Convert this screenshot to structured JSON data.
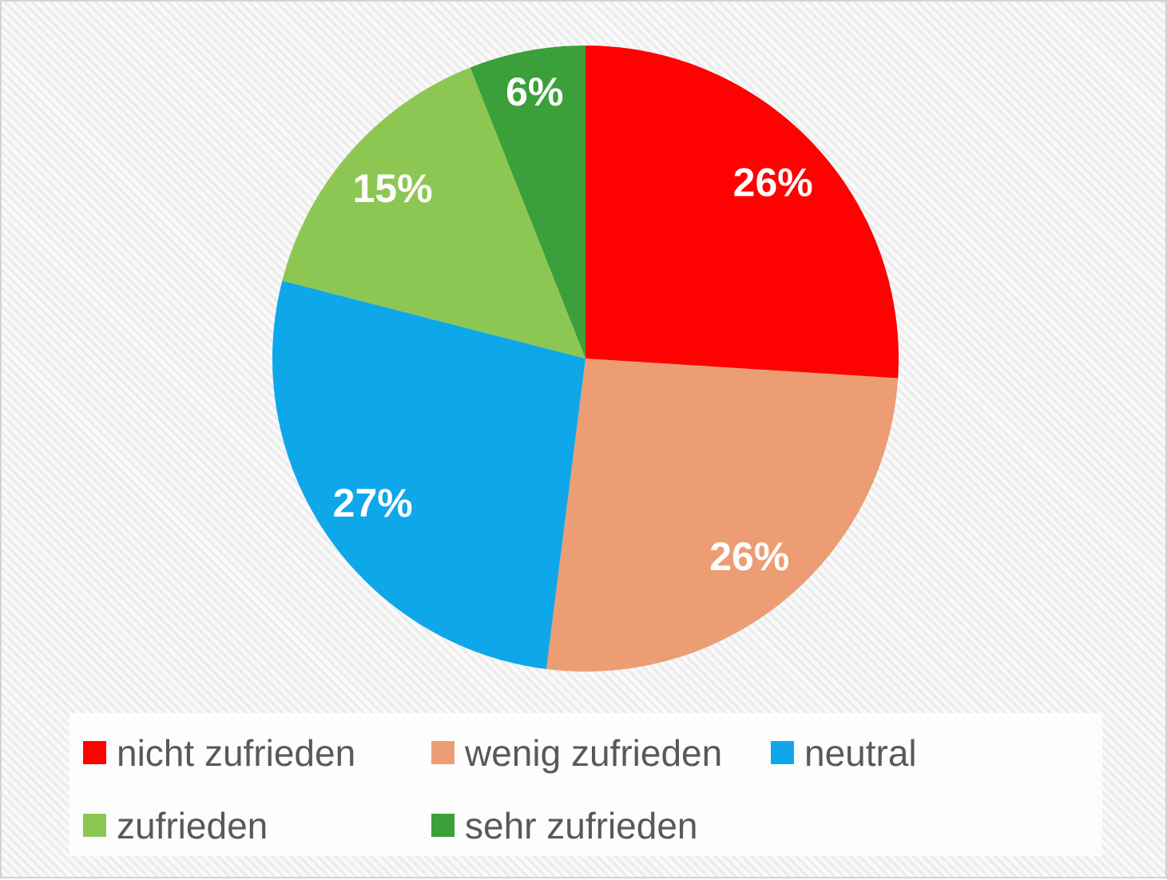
{
  "chart_data": {
    "type": "pie",
    "title": "",
    "categories": [
      "nicht zufrieden",
      "wenig zufrieden",
      "neutral",
      "zufrieden",
      "sehr zufrieden"
    ],
    "values": [
      26,
      26,
      27,
      15,
      6
    ],
    "data_labels": [
      "26%",
      "26%",
      "27%",
      "15%",
      "6%"
    ],
    "slice_colors": [
      "#FE0101",
      "#EC9D74",
      "#0EA7EA",
      "#8DC753",
      "#3BA039"
    ],
    "start_angle_deg": 0,
    "direction": "clockwise",
    "data_label_color": "#FFFFFF",
    "legend_position": "bottom",
    "legend_text_color": "#595959"
  },
  "legend": {
    "items": [
      {
        "label": "nicht zufrieden",
        "color": "#FE0101"
      },
      {
        "label": "wenig zufrieden",
        "color": "#EC9D74"
      },
      {
        "label": "neutral",
        "color": "#0EA7EA"
      },
      {
        "label": "zufrieden",
        "color": "#8DC753"
      },
      {
        "label": "sehr zufrieden",
        "color": "#3BA039"
      }
    ]
  },
  "colors": {
    "background_stripe": "#ECECEC",
    "background_base": "#FAFAFA",
    "border": "#D3D3D3",
    "legend_panel": "rgba(255,255,255,0.82)"
  }
}
